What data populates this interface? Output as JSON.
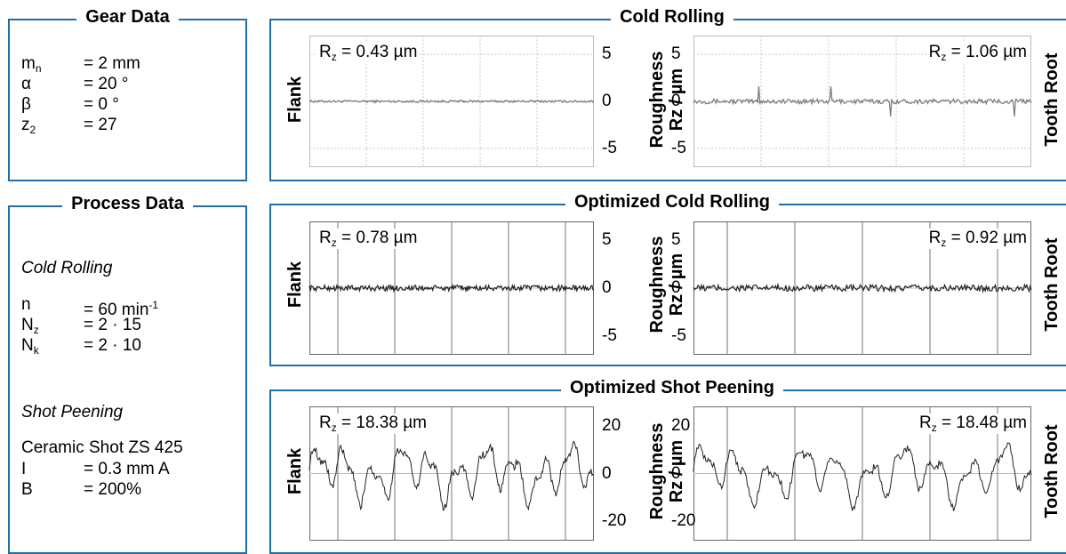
{
  "gear_data": {
    "title": "Gear Data",
    "rows": [
      {
        "sym": "m",
        "sub": "n",
        "val": "= 2 mm"
      },
      {
        "sym": "α",
        "sub": "",
        "val": "= 20 °"
      },
      {
        "sym": "β",
        "sub": "",
        "val": "= 0 °"
      },
      {
        "sym": "z",
        "sub": "2",
        "val": "= 27"
      }
    ]
  },
  "process_data": {
    "title": "Process Data",
    "cold_rolling_label": "Cold Rolling",
    "cold_rows": [
      {
        "sym": "n",
        "sub": "",
        "val": "= 60 min",
        "sup": "-1"
      },
      {
        "sym": "N",
        "sub": "z",
        "val": "= 2 · 15",
        "sup": ""
      },
      {
        "sym": "N",
        "sub": "k",
        "val": "= 2 · 10",
        "sup": ""
      }
    ],
    "shot_peening_label": "Shot Peening",
    "shot_line": "Ceramic Shot ZS 425",
    "shot_rows": [
      {
        "sym": "I",
        "val": "= 0.3 mm A"
      },
      {
        "sym": "B",
        "val": "= 200%"
      }
    ]
  },
  "labels": {
    "flank": "Flank",
    "tooth_root": "Tooth Root",
    "roughness_line1": "Roughness",
    "roughness_line2": "Rz / µm",
    "rz_prefix": "R",
    "rz_sub": "z"
  },
  "chart_data": [
    {
      "type": "line",
      "panel": "Cold Rolling",
      "side": "Flank",
      "rz": "= 0.43 µm",
      "ylim": [
        -7,
        7
      ],
      "yticks": [
        "5",
        "0",
        "-5"
      ],
      "amplitude": 0.12,
      "style": "dashed-grid"
    },
    {
      "type": "line",
      "panel": "Cold Rolling",
      "side": "Tooth Root",
      "rz": "= 1.06 µm",
      "ylim": [
        -7,
        7
      ],
      "yticks": [
        "5",
        "0",
        "-5"
      ],
      "amplitude": 0.25,
      "style": "dashed-grid"
    },
    {
      "type": "line",
      "panel": "Optimized Cold Rolling",
      "side": "Flank",
      "rz": "= 0.78 µm",
      "ylim": [
        -7,
        7
      ],
      "yticks": [
        "5",
        "0",
        "-5"
      ],
      "amplitude": 0.3,
      "style": "solid-vlines"
    },
    {
      "type": "line",
      "panel": "Optimized Cold Rolling",
      "side": "Tooth Root",
      "rz": "= 0.92 µm",
      "ylim": [
        -7,
        7
      ],
      "yticks": [
        "5",
        "0",
        "-5"
      ],
      "amplitude": 0.35,
      "style": "solid-vlines"
    },
    {
      "type": "line",
      "panel": "Optimized Shot Peening",
      "side": "Flank",
      "rz": "= 18.38 µm",
      "ylim": [
        -28,
        28
      ],
      "yticks": [
        "20",
        "0",
        "-20"
      ],
      "amplitude": 13,
      "style": "solid-vlines"
    },
    {
      "type": "line",
      "panel": "Optimized Shot Peening",
      "side": "Tooth Root",
      "rz": "= 18.48 µm",
      "ylim": [
        -28,
        28
      ],
      "yticks": [
        "20",
        "0",
        "-20"
      ],
      "amplitude": 13,
      "style": "solid-vlines"
    }
  ]
}
